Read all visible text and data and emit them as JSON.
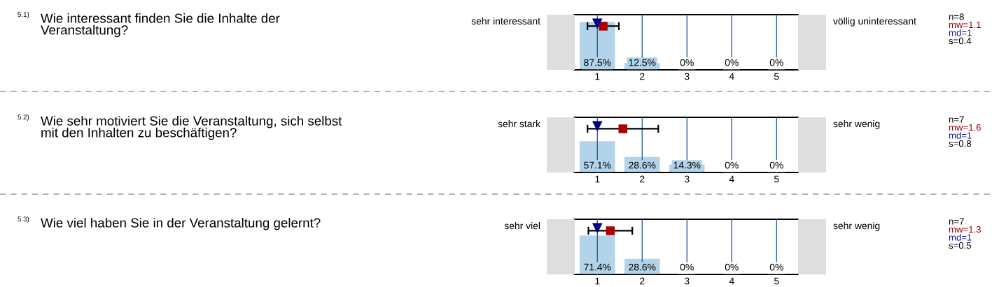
{
  "chart_data": [
    {
      "type": "bar",
      "x": [
        1,
        2,
        3,
        4,
        5
      ],
      "values": [
        87.5,
        12.5,
        0,
        0,
        0
      ],
      "value_labels": [
        "87.5%",
        "12.5%",
        "0%",
        "0%",
        "0%"
      ],
      "color": "#b3d3ea",
      "xlim": [
        0.48,
        5.48
      ],
      "xticks": [
        1,
        2,
        3,
        4,
        5
      ],
      "ylim": [
        0,
        101
      ],
      "tick_labels": "x",
      "grid": "x",
      "series": [
        {
          "type": "scatter",
          "color": "#aa0000",
          "marker": "square",
          "x": [
            1.13
          ],
          "values": [
            80
          ],
          "xerrors": [
            0.35
          ]
        },
        {
          "type": "scatter",
          "color": "#000080",
          "marker": "triangle",
          "x": [
            1
          ],
          "values": [
            85
          ]
        }
      ],
      "annotations": [
        "5.1)",
        "Wie interessant finden Sie die Inhalte der\nVeranstaltung?",
        "sehr interessant",
        "völlig uninteressant",
        "n=8",
        "mw=1.1",
        "md=1",
        "s=0.4"
      ]
    },
    {
      "type": "bar",
      "x": [
        1,
        2,
        3,
        4,
        5
      ],
      "values": [
        57.1,
        28.6,
        14.3,
        0,
        0
      ],
      "value_labels": [
        "57.1%",
        "28.6%",
        "14.3%",
        "0%",
        "0%"
      ],
      "color": "#b3d3ea",
      "xlim": [
        0.48,
        5.48
      ],
      "xticks": [
        1,
        2,
        3,
        4,
        5
      ],
      "ylim": [
        0,
        101
      ],
      "tick_labels": "x",
      "grid": "x",
      "series": [
        {
          "type": "scatter",
          "color": "#aa0000",
          "marker": "square",
          "x": [
            1.57
          ],
          "values": [
            80
          ],
          "xerrors": [
            0.79
          ]
        },
        {
          "type": "scatter",
          "color": "#000080",
          "marker": "triangle",
          "x": [
            1
          ],
          "values": [
            85
          ]
        }
      ],
      "annotations": [
        "5.2)",
        "Wie sehr motiviert Sie die Veranstaltung, sich selbst\nmit den Inhalten zu beschäftigen?",
        "sehr stark",
        "sehr wenig",
        "n=7",
        "mw=1.6",
        "md=1",
        "s=0.8"
      ]
    },
    {
      "type": "bar",
      "x": [
        1,
        2,
        3,
        4,
        5
      ],
      "values": [
        71.4,
        28.6,
        0,
        0,
        0
      ],
      "value_labels": [
        "71.4%",
        "28.6%",
        "0%",
        "0%",
        "0%"
      ],
      "color": "#b3d3ea",
      "xlim": [
        0.48,
        5.48
      ],
      "xticks": [
        1,
        2,
        3,
        4,
        5
      ],
      "ylim": [
        0,
        101
      ],
      "tick_labels": "x",
      "grid": "x",
      "series": [
        {
          "type": "scatter",
          "color": "#aa0000",
          "marker": "square",
          "x": [
            1.29
          ],
          "values": [
            80
          ],
          "xerrors": [
            0.49
          ]
        },
        {
          "type": "scatter",
          "color": "#000080",
          "marker": "triangle",
          "x": [
            1
          ],
          "values": [
            85
          ]
        }
      ],
      "annotations": [
        "5.3)",
        "Wie viel haben Sie in der Veranstaltung gelernt?",
        "sehr viel",
        "sehr wenig",
        "n=7",
        "mw=1.3",
        "md=1",
        "s=0.5"
      ]
    }
  ]
}
